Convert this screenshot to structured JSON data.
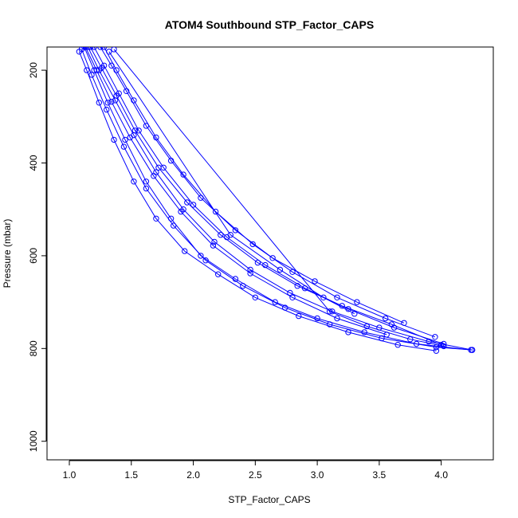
{
  "chart_data": {
    "type": "line",
    "title": "ATOM4 Southbound STP_Factor_CAPS",
    "xlabel": "STP_Factor_CAPS",
    "ylabel": "Pressure (mbar)",
    "xlim": [
      0.82,
      4.42
    ],
    "ylim": [
      1040,
      150
    ],
    "y_inverted": true,
    "grid": false,
    "legend": "none",
    "x_ticks": [
      1.0,
      1.5,
      2.0,
      2.5,
      3.0,
      3.5,
      4.0
    ],
    "x_tick_labels": [
      "1.0",
      "1.5",
      "2.0",
      "2.5",
      "3.0",
      "3.5",
      "4.0"
    ],
    "y_ticks": [
      200,
      400,
      600,
      800,
      1000
    ],
    "y_tick_labels": [
      "200",
      "400",
      "600",
      "800",
      "1000"
    ],
    "series_color": "#0000ff",
    "marker": "open-circle",
    "series": [
      {
        "x": [
          1.12,
          1.2,
          1.31,
          1.45,
          1.62,
          1.82,
          2.06,
          2.34,
          2.66,
          3.0,
          3.38,
          3.8,
          4.24
        ],
        "y": [
          150,
          200,
          270,
          350,
          440,
          520,
          600,
          650,
          700,
          735,
          765,
          790,
          803
        ]
      },
      {
        "x": [
          1.15,
          1.24,
          1.37,
          1.52,
          1.7,
          1.92,
          2.17,
          2.46,
          2.78,
          3.12,
          3.5,
          3.9,
          4.25
        ],
        "y": [
          150,
          200,
          265,
          340,
          420,
          500,
          570,
          630,
          680,
          720,
          755,
          785,
          803
        ]
      },
      {
        "x": [
          1.08,
          1.14,
          1.24,
          1.36,
          1.52,
          1.7,
          1.93,
          2.2,
          2.5,
          2.85,
          3.25,
          3.65,
          3.96
        ],
        "y": [
          160,
          200,
          270,
          350,
          440,
          520,
          590,
          640,
          690,
          730,
          765,
          792,
          805
        ]
      },
      {
        "x": [
          1.2,
          1.28,
          1.4,
          1.56,
          1.76,
          2.0,
          2.27,
          2.58,
          2.9,
          3.25,
          3.62,
          4.02
        ],
        "y": [
          150,
          190,
          250,
          330,
          410,
          490,
          560,
          620,
          670,
          715,
          755,
          790
        ]
      },
      {
        "x": [
          1.1,
          1.18,
          1.3,
          1.44,
          1.62,
          1.84,
          2.1,
          2.4,
          2.74,
          3.1,
          3.52,
          3.96,
          4.25
        ],
        "y": [
          155,
          210,
          285,
          365,
          455,
          535,
          610,
          665,
          712,
          748,
          778,
          797,
          803
        ]
      },
      {
        "x": [
          1.17,
          1.26,
          1.38,
          1.53,
          1.72,
          1.95,
          2.22,
          2.52,
          2.84,
          3.2,
          3.6,
          4.0
        ],
        "y": [
          150,
          195,
          255,
          330,
          410,
          485,
          555,
          615,
          665,
          708,
          748,
          792
        ]
      },
      {
        "x": [
          1.25,
          1.34,
          1.46,
          1.62,
          1.82,
          2.06,
          2.34,
          2.64,
          2.98,
          3.32,
          3.7
        ],
        "y": [
          150,
          190,
          245,
          320,
          395,
          475,
          545,
          605,
          655,
          700,
          745
        ]
      },
      {
        "x": [
          1.13,
          1.22,
          1.34,
          1.49,
          1.68,
          1.9,
          2.16,
          2.46,
          2.8,
          3.16,
          3.56
        ],
        "y": [
          150,
          200,
          268,
          345,
          428,
          505,
          578,
          638,
          690,
          735,
          770
        ]
      },
      {
        "x": [
          1.28,
          1.38,
          1.52,
          1.7,
          1.92,
          2.18,
          2.48,
          2.8,
          3.16,
          3.55,
          3.95
        ],
        "y": [
          150,
          200,
          265,
          345,
          425,
          505,
          575,
          635,
          690,
          735,
          775
        ]
      },
      {
        "x": [
          1.36,
          3.1,
          3.4,
          3.75,
          4.02
        ],
        "y": [
          155,
          720,
          752,
          780,
          795
        ]
      },
      {
        "x": [
          1.32,
          2.3,
          2.7,
          3.05,
          3.3
        ],
        "y": [
          160,
          555,
          630,
          690,
          725
        ]
      }
    ]
  }
}
